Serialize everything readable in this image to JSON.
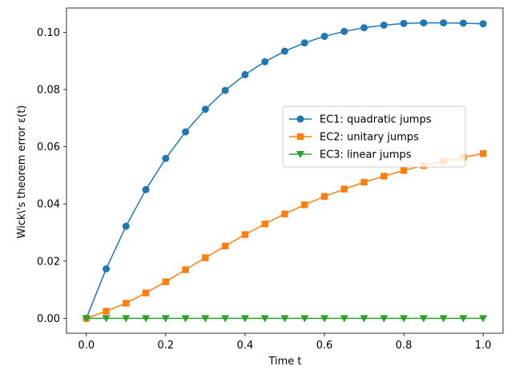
{
  "chart_data": {
    "type": "line",
    "title": "",
    "xlabel": "Time t",
    "ylabel": "Wick\\'s theorem error ε(t)",
    "xlim": [
      -0.05,
      1.05
    ],
    "ylim": [
      -0.0052,
      0.1085
    ],
    "xticks": [
      0.0,
      0.2,
      0.4,
      0.6,
      0.8,
      1.0
    ],
    "xtick_labels": [
      "0.0",
      "0.2",
      "0.4",
      "0.6",
      "0.8",
      "1.0"
    ],
    "yticks": [
      0.0,
      0.02,
      0.04,
      0.06,
      0.08,
      0.1
    ],
    "ytick_labels": [
      "0.00",
      "0.02",
      "0.04",
      "0.06",
      "0.08",
      "0.10"
    ],
    "grid": false,
    "legend_position": "center-right",
    "x": [
      0.0,
      0.05,
      0.1,
      0.15,
      0.2,
      0.25,
      0.3,
      0.35,
      0.4,
      0.45,
      0.5,
      0.55,
      0.6,
      0.65,
      0.7,
      0.75,
      0.8,
      0.85,
      0.9,
      0.95,
      1.0
    ],
    "series": [
      {
        "name": "EC1: quadratic jumps",
        "color": "#1f77b4",
        "marker": "circle",
        "values": [
          0.0,
          0.0173,
          0.0322,
          0.045,
          0.0559,
          0.0652,
          0.0731,
          0.0797,
          0.0852,
          0.0897,
          0.0934,
          0.0963,
          0.0986,
          0.1003,
          0.1016,
          0.1025,
          0.1031,
          0.1033,
          0.1033,
          0.1032,
          0.103
        ]
      },
      {
        "name": "EC2: unitary jumps",
        "color": "#ff7f0e",
        "marker": "square",
        "values": [
          0.0,
          0.0025,
          0.0053,
          0.0089,
          0.0128,
          0.017,
          0.0212,
          0.0253,
          0.0293,
          0.033,
          0.0365,
          0.0397,
          0.0426,
          0.0452,
          0.0476,
          0.0497,
          0.0517,
          0.0534,
          0.0549,
          0.0563,
          0.0576
        ]
      },
      {
        "name": "EC3: linear jumps",
        "color": "#2ca02c",
        "marker": "triangle-down",
        "values": [
          0.0,
          0.0,
          0.0,
          0.0,
          0.0,
          0.0,
          0.0,
          0.0,
          0.0,
          0.0,
          0.0,
          0.0,
          0.0,
          0.0,
          0.0,
          0.0,
          0.0,
          0.0,
          0.0,
          0.0,
          0.0
        ]
      }
    ]
  }
}
